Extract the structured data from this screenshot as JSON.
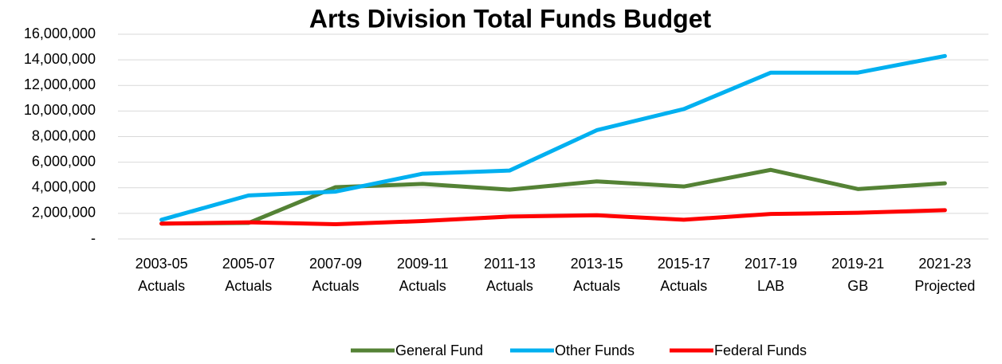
{
  "chart_data": {
    "type": "line",
    "title": "Arts Division Total Funds Budget",
    "categories": [
      [
        "2003-05",
        "Actuals"
      ],
      [
        "2005-07",
        "Actuals"
      ],
      [
        "2007-09",
        "Actuals"
      ],
      [
        "2009-11",
        "Actuals"
      ],
      [
        "2011-13",
        "Actuals"
      ],
      [
        "2013-15",
        "Actuals"
      ],
      [
        "2015-17",
        "Actuals"
      ],
      [
        "2017-19",
        "LAB"
      ],
      [
        "2019-21",
        "GB"
      ],
      [
        "2021-23",
        "Projected"
      ]
    ],
    "series": [
      {
        "name": "General Fund",
        "color": "#548235",
        "values": [
          1200000,
          1250000,
          4050000,
          4300000,
          3850000,
          4500000,
          4100000,
          5400000,
          3900000,
          4350000
        ]
      },
      {
        "name": "Other Funds",
        "color": "#00b0f0",
        "values": [
          1500000,
          3400000,
          3700000,
          5100000,
          5350000,
          8500000,
          10150000,
          13000000,
          13000000,
          14300000
        ]
      },
      {
        "name": "Federal Funds",
        "color": "#ff0000",
        "values": [
          1200000,
          1300000,
          1150000,
          1400000,
          1750000,
          1850000,
          1500000,
          1950000,
          2050000,
          2250000
        ]
      }
    ],
    "ylim": [
      0,
      16000000
    ],
    "yticks": [
      {
        "value": 0,
        "label": "-"
      },
      {
        "value": 2000000,
        "label": "2,000,000"
      },
      {
        "value": 4000000,
        "label": "4,000,000"
      },
      {
        "value": 6000000,
        "label": "6,000,000"
      },
      {
        "value": 8000000,
        "label": "8,000,000"
      },
      {
        "value": 10000000,
        "label": "10,000,000"
      },
      {
        "value": 12000000,
        "label": "12,000,000"
      },
      {
        "value": 14000000,
        "label": "14,000,000"
      },
      {
        "value": 16000000,
        "label": "16,000,000"
      }
    ],
    "grid": true,
    "legend": "bottom"
  }
}
